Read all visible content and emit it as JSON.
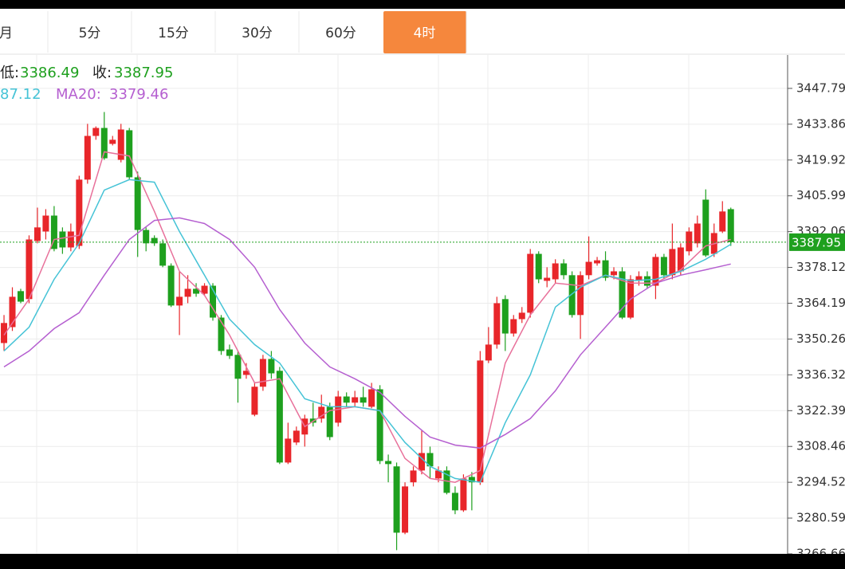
{
  "chart_data": {
    "type": "candlestick",
    "tabs": [
      "月",
      "5分",
      "15分",
      "30分",
      "60分",
      "4时"
    ],
    "active_tab": 5,
    "readout": {
      "low_label": "低:",
      "close_label": "收:",
      "ma10_fragment": "87.12",
      "ma20_label": "MA20:"
    },
    "up_color": "#e8262a",
    "down_color": "#1ea01e",
    "grid": true,
    "xlim": [
      -0.48,
      93.8
    ],
    "ylim": [
      3266.66,
      3460.79
    ],
    "yticks": [
      3447.79,
      3433.86,
      3419.92,
      3405.99,
      3392.06,
      3378.12,
      3364.19,
      3350.26,
      3336.32,
      3322.39,
      3308.46,
      3294.52,
      3280.59,
      3266.66
    ],
    "open": [
      3348.7,
      3354.9,
      3368.9,
      3365.8,
      3388.4,
      3392.1,
      3398.3,
      3392.1,
      3385.9,
      3386.5,
      3412.3,
      3429.3,
      3432.4,
      3426.2,
      3420,
      3431.5,
      3413.2,
      3392.7,
      3389.6,
      3387.5,
      3378.8,
      3363.3,
      3366.7,
      3369.8,
      3367.9,
      3371,
      3358.6,
      3346.2,
      3344.1,
      3336.3,
      3320.8,
      3331.7,
      3342.5,
      3337.9,
      3302.2,
      3310,
      3313.1,
      3319.3,
      3319.3,
      3323.9,
      3317.7,
      3327.9,
      3325.5,
      3327.6,
      3323.9,
      3330.7,
      3302.8,
      3300.7,
      3274.9,
      3294.5,
      3299.1,
      3305.9,
      3296,
      3299.1,
      3290.4,
      3283.6,
      3296.6,
      3294.5,
      3341.9,
      3348.1,
      3365.8,
      3352.4,
      3358,
      3360.5,
      3383.4,
      3372.9,
      3373.5,
      3379.7,
      3375.1,
      3359.6,
      3375.1,
      3379.7,
      3380.9,
      3375.1,
      3376.6,
      3358.6,
      3372.9,
      3374.7,
      3371,
      3382.2,
      3375.1,
      3376.6,
      3384.4,
      3387.5,
      3404.5,
      3383.4,
      3392.1,
      3400.8
    ],
    "high": [
      3359.6,
      3370.4,
      3369.8,
      3390.6,
      3401.4,
      3400.8,
      3402,
      3393.7,
      3395.2,
      3413.8,
      3434,
      3433,
      3438.6,
      3429.3,
      3434,
      3432.4,
      3415.4,
      3393.7,
      3390.6,
      3389,
      3379.7,
      3376.6,
      3375.1,
      3372,
      3372,
      3372,
      3359.6,
      3348.1,
      3345.6,
      3340.9,
      3333.2,
      3344.1,
      3345.6,
      3339.4,
      3317.7,
      3316.2,
      3320.8,
      3325.5,
      3328.6,
      3325.5,
      3330.1,
      3329.5,
      3330.1,
      3331.7,
      3333.2,
      3332.3,
      3305.3,
      3302.2,
      3294.5,
      3300.7,
      3314.6,
      3308.4,
      3300.7,
      3300.7,
      3292.9,
      3297.6,
      3298.5,
      3345.6,
      3354.9,
      3366.7,
      3367.3,
      3359.6,
      3362.7,
      3385.3,
      3384.4,
      3378.2,
      3381.3,
      3381.3,
      3376.6,
      3376.6,
      3390.2,
      3382.2,
      3384.4,
      3378.2,
      3378.2,
      3375.1,
      3376.6,
      3376.6,
      3383.4,
      3383.4,
      3395.2,
      3387.5,
      3393.7,
      3398.3,
      3408.5,
      3395.2,
      3403.9,
      3401.4
    ],
    "low": [
      3345.6,
      3353.4,
      3364.2,
      3364.2,
      3387.5,
      3389,
      3384.4,
      3383.4,
      3384.4,
      3385.3,
      3410.7,
      3427.8,
      3420,
      3425.6,
      3419,
      3412.3,
      3382.2,
      3384.4,
      3386.5,
      3378.2,
      3362.7,
      3351.8,
      3364.2,
      3366.7,
      3367.3,
      3357.4,
      3344.1,
      3342.5,
      3325.5,
      3334.8,
      3320.2,
      3330.1,
      3334.8,
      3301.6,
      3301.6,
      3309,
      3308.4,
      3316.2,
      3317.7,
      3310.9,
      3316.2,
      3323.9,
      3323.9,
      3323.9,
      3323.3,
      3301.6,
      3294.5,
      3268.1,
      3274.3,
      3292.9,
      3297.6,
      3296,
      3294.5,
      3289.8,
      3282.1,
      3283,
      3283.6,
      3293.5,
      3340.9,
      3346.5,
      3345.6,
      3351.2,
      3356.5,
      3358.6,
      3372,
      3370.4,
      3372,
      3373.5,
      3358.6,
      3350.3,
      3373.5,
      3378.8,
      3372.9,
      3373.5,
      3358,
      3358,
      3371,
      3369.8,
      3365.8,
      3373.5,
      3373.5,
      3375.1,
      3382.8,
      3385.9,
      3382.2,
      3382.2,
      3391.5,
      3386.49
    ],
    "close": [
      3356.5,
      3366.7,
      3364.8,
      3389,
      3393.7,
      3398.3,
      3385.3,
      3385.9,
      3392.1,
      3412.3,
      3429.3,
      3432.4,
      3420.6,
      3427.8,
      3431.8,
      3413.2,
      3392.7,
      3387.5,
      3387.5,
      3378.8,
      3363.3,
      3366.7,
      3369.8,
      3367.9,
      3371,
      3358.6,
      3345.6,
      3343.7,
      3334.8,
      3337.9,
      3331.7,
      3342.5,
      3336.9,
      3302.2,
      3311.5,
      3314.6,
      3319.3,
      3317.7,
      3323.9,
      3312.1,
      3327.9,
      3325.5,
      3327.6,
      3325.5,
      3330.7,
      3302.8,
      3301.6,
      3274.9,
      3292.9,
      3299.1,
      3305.9,
      3300.7,
      3299.1,
      3290.4,
      3283.6,
      3296,
      3294.5,
      3341.9,
      3348.1,
      3364.2,
      3352.4,
      3358,
      3360.5,
      3383.4,
      3373.5,
      3374.1,
      3379.7,
      3375.1,
      3359.6,
      3375.1,
      3380.3,
      3380.9,
      3374.1,
      3376.6,
      3358.6,
      3373.5,
      3374.7,
      3371,
      3382.2,
      3375.1,
      3385.3,
      3385.9,
      3392.1,
      3395.2,
      3382.8,
      3391.5,
      3399.9,
      3387.95
    ],
    "series": [
      {
        "color": "#e8709a",
        "x": [
          0,
          3,
          6,
          9,
          12,
          15,
          18,
          21,
          24,
          27,
          30,
          33,
          36,
          39,
          42,
          45,
          48,
          51,
          54,
          57,
          60,
          63,
          66,
          69,
          72,
          75,
          78,
          81,
          84,
          87
        ],
        "values": [
          3351.8,
          3365.8,
          3389,
          3390.6,
          3423.1,
          3421.5,
          3399.9,
          3376.6,
          3367.3,
          3351.8,
          3333.2,
          3334.8,
          3316.2,
          3322.4,
          3323.9,
          3322.4,
          3303.8,
          3296,
          3294.5,
          3299.1,
          3340.9,
          3359.6,
          3372,
          3371,
          3375.1,
          3372,
          3372,
          3377.2,
          3386.5,
          3389
        ]
      },
      {
        "color": "#45c3d6",
        "x": [
          0,
          3,
          6,
          9,
          12,
          15,
          18,
          21,
          24,
          27,
          30,
          33,
          36,
          39,
          42,
          45,
          48,
          51,
          54,
          57,
          60,
          63,
          66,
          69,
          72,
          75,
          78,
          81,
          84,
          87
        ],
        "values": [
          3345.6,
          3354.9,
          3373.5,
          3387.5,
          3408.2,
          3412.3,
          3411.3,
          3392.1,
          3375.1,
          3358,
          3348.1,
          3340.9,
          3327,
          3323.9,
          3323.9,
          3322.4,
          3310,
          3300.7,
          3296,
          3294.5,
          3317.7,
          3336.3,
          3362.7,
          3370.4,
          3375.1,
          3372.9,
          3373.5,
          3376.6,
          3381.3,
          3387.12
        ]
      },
      {
        "color": "#b55fd0",
        "x": [
          0,
          3,
          6,
          9,
          12,
          15,
          18,
          21,
          24,
          27,
          30,
          33,
          36,
          39,
          42,
          45,
          48,
          51,
          54,
          57,
          60,
          63,
          66,
          69,
          72,
          75,
          78,
          81,
          84,
          87
        ],
        "values": [
          3339.4,
          3345.6,
          3354.3,
          3360.5,
          3375.1,
          3389,
          3396.4,
          3397.4,
          3395.2,
          3389,
          3378.2,
          3361.7,
          3348.7,
          3339.4,
          3334.8,
          3329.5,
          3320.2,
          3312.1,
          3309,
          3307.8,
          3313.1,
          3319.3,
          3330.1,
          3344.1,
          3354.9,
          3365.8,
          3372,
          3375.1,
          3377.2,
          3379.46
        ]
      }
    ]
  }
}
